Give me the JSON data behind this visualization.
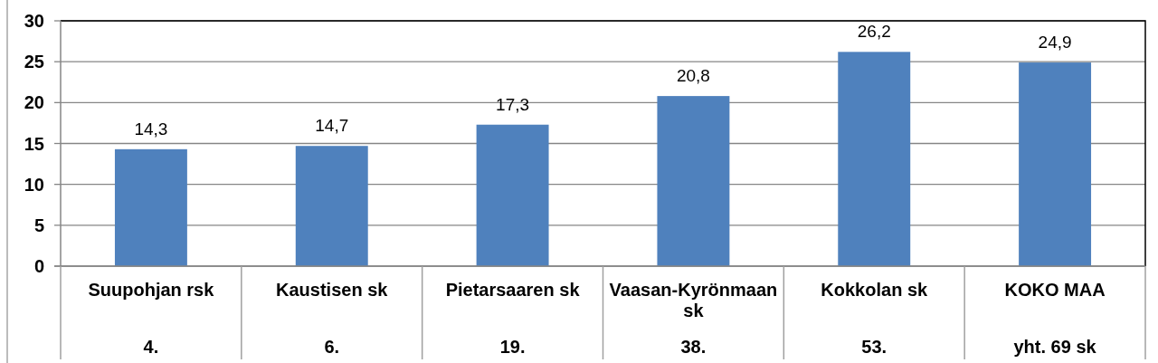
{
  "chart_data": {
    "type": "bar",
    "categories": [
      "Suupohjan rsk",
      "Kaustisen sk",
      "Pietarsaaren sk",
      "Vaasan-Kyrönmaan sk",
      "Kokkolan sk",
      "KOKO MAA"
    ],
    "values": [
      14.3,
      14.7,
      17.3,
      20.8,
      26.2,
      24.9
    ],
    "value_labels": [
      "14,3",
      "14,7",
      "17,3",
      "20,8",
      "26,2",
      "24,9"
    ],
    "color": "#4f81bd",
    "ylim": [
      0,
      30
    ],
    "yticks": [
      0,
      5,
      10,
      15,
      20,
      25,
      30
    ],
    "grid": "y",
    "annotations": [
      "4.",
      "6.",
      "19.",
      "38.",
      "53.",
      "yht. 69 sk"
    ]
  }
}
